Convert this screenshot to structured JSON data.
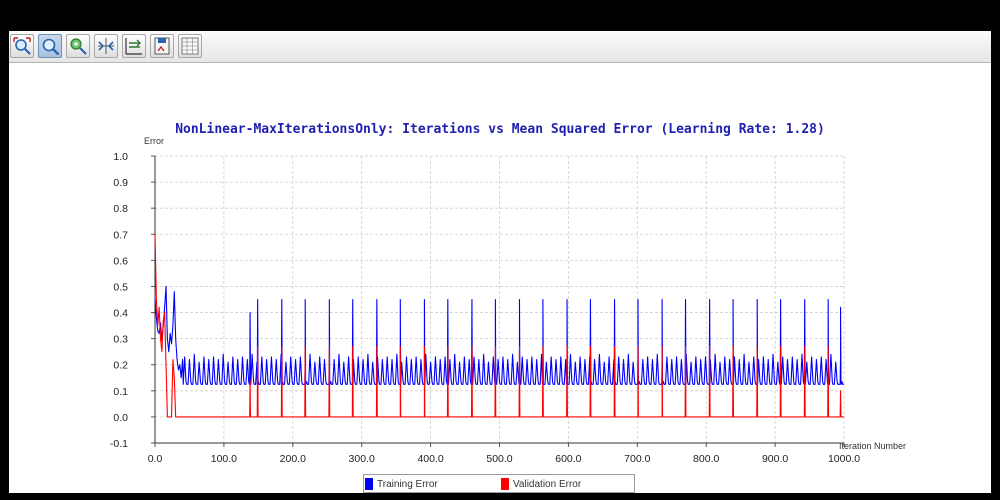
{
  "toolbar": {
    "buttons": [
      {
        "name": "zoom-reset-icon"
      },
      {
        "name": "zoom-icon",
        "active": true
      },
      {
        "name": "pan-icon"
      },
      {
        "name": "fit-axes-icon"
      },
      {
        "name": "axis-settings-icon"
      },
      {
        "name": "save-image-icon"
      },
      {
        "name": "data-table-icon"
      }
    ]
  },
  "chart_data": {
    "type": "line",
    "title": "NonLinear-MaxIterationsOnly: Iterations vs Mean Squared Error (Learning Rate: 1.28)",
    "xlabel": "Iteration Number",
    "ylabel": "Error",
    "xlim": [
      0,
      1000
    ],
    "ylim": [
      -0.1,
      1.0
    ],
    "xticks": [
      "0.0",
      "100.0",
      "200.0",
      "300.0",
      "400.0",
      "500.0",
      "600.0",
      "700.0",
      "800.0",
      "900.0",
      "1000.0"
    ],
    "yticks": [
      "-0.1",
      "0.0",
      "0.1",
      "0.2",
      "0.3",
      "0.4",
      "0.5",
      "0.6",
      "0.7",
      "0.8",
      "0.9",
      "1.0"
    ],
    "grid": true,
    "legend_position": "bottom",
    "series": [
      {
        "name": "Training Error",
        "color": "#0000ff",
        "initial_segment": [
          [
            0,
            0.45
          ],
          [
            2,
            0.38
          ],
          [
            4,
            0.33
          ],
          [
            6,
            0.32
          ],
          [
            8,
            0.36
          ],
          [
            10,
            0.29
          ],
          [
            12,
            0.35
          ],
          [
            14,
            0.42
          ],
          [
            16,
            0.5
          ],
          [
            18,
            0.3
          ],
          [
            20,
            0.25
          ],
          [
            22,
            0.32
          ],
          [
            24,
            0.28
          ],
          [
            26,
            0.35
          ],
          [
            28,
            0.48
          ],
          [
            30,
            0.3
          ],
          [
            32,
            0.22
          ],
          [
            34,
            0.18
          ],
          [
            36,
            0.2
          ],
          [
            38,
            0.15
          ],
          [
            40,
            0.22
          ]
        ],
        "baseline": 0.125,
        "oscillation_period": 7,
        "oscillation_peaks": [
          0.23,
          0.22,
          0.24,
          0.21,
          0.23,
          0.22
        ],
        "spikes": [
          {
            "x": 138,
            "y": 0.4
          },
          {
            "x": 149,
            "y": 0.45
          },
          {
            "x": 184,
            "y": 0.45
          },
          {
            "x": 218,
            "y": 0.45
          },
          {
            "x": 253,
            "y": 0.45
          },
          {
            "x": 287,
            "y": 0.45
          },
          {
            "x": 322,
            "y": 0.45
          },
          {
            "x": 356,
            "y": 0.45
          },
          {
            "x": 391,
            "y": 0.45
          },
          {
            "x": 425,
            "y": 0.45
          },
          {
            "x": 460,
            "y": 0.45
          },
          {
            "x": 494,
            "y": 0.45
          },
          {
            "x": 529,
            "y": 0.45
          },
          {
            "x": 563,
            "y": 0.45
          },
          {
            "x": 598,
            "y": 0.45
          },
          {
            "x": 632,
            "y": 0.45
          },
          {
            "x": 667,
            "y": 0.45
          },
          {
            "x": 701,
            "y": 0.45
          },
          {
            "x": 736,
            "y": 0.45
          },
          {
            "x": 770,
            "y": 0.45
          },
          {
            "x": 805,
            "y": 0.45
          },
          {
            "x": 839,
            "y": 0.45
          },
          {
            "x": 874,
            "y": 0.45
          },
          {
            "x": 908,
            "y": 0.45
          },
          {
            "x": 943,
            "y": 0.45
          },
          {
            "x": 977,
            "y": 0.45
          },
          {
            "x": 995,
            "y": 0.42
          }
        ],
        "end_value": 0.125
      },
      {
        "name": "Validation Error",
        "color": "#ff0000",
        "initial_segment": [
          [
            0,
            0.7
          ],
          [
            2,
            0.45
          ],
          [
            4,
            0.35
          ],
          [
            6,
            0.42
          ],
          [
            8,
            0.3
          ],
          [
            10,
            0.25
          ],
          [
            12,
            0.37
          ],
          [
            14,
            0.4
          ],
          [
            16,
            0.2
          ],
          [
            18,
            0.0
          ],
          [
            20,
            0.0
          ],
          [
            22,
            0.0
          ],
          [
            24,
            0.0
          ],
          [
            26,
            0.22
          ],
          [
            28,
            0.15
          ],
          [
            30,
            0.0
          ]
        ],
        "baseline": 0.0,
        "spikes": [
          {
            "x": 138,
            "y": 0.14
          },
          {
            "x": 149,
            "y": 0.27
          },
          {
            "x": 184,
            "y": 0.27
          },
          {
            "x": 218,
            "y": 0.27
          },
          {
            "x": 253,
            "y": 0.27
          },
          {
            "x": 287,
            "y": 0.27
          },
          {
            "x": 322,
            "y": 0.27
          },
          {
            "x": 356,
            "y": 0.27
          },
          {
            "x": 391,
            "y": 0.27
          },
          {
            "x": 425,
            "y": 0.27
          },
          {
            "x": 460,
            "y": 0.27
          },
          {
            "x": 494,
            "y": 0.27
          },
          {
            "x": 529,
            "y": 0.27
          },
          {
            "x": 563,
            "y": 0.27
          },
          {
            "x": 598,
            "y": 0.27
          },
          {
            "x": 632,
            "y": 0.27
          },
          {
            "x": 667,
            "y": 0.27
          },
          {
            "x": 701,
            "y": 0.27
          },
          {
            "x": 736,
            "y": 0.27
          },
          {
            "x": 770,
            "y": 0.27
          },
          {
            "x": 805,
            "y": 0.27
          },
          {
            "x": 839,
            "y": 0.27
          },
          {
            "x": 874,
            "y": 0.27
          },
          {
            "x": 908,
            "y": 0.27
          },
          {
            "x": 943,
            "y": 0.27
          },
          {
            "x": 977,
            "y": 0.27
          },
          {
            "x": 995,
            "y": 0.1
          }
        ],
        "end_value": 0.0
      }
    ]
  }
}
